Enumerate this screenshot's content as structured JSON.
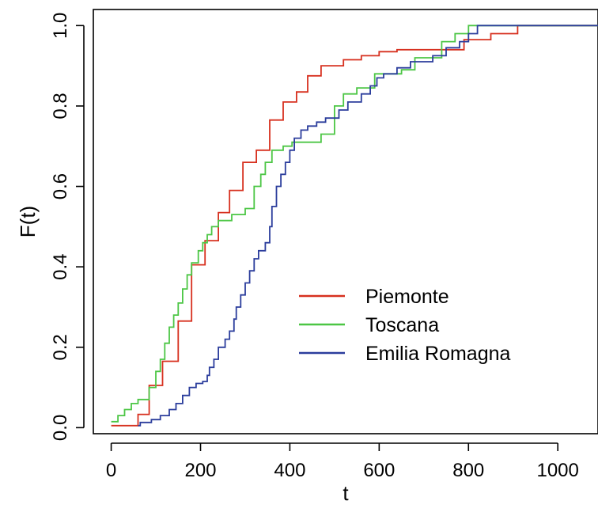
{
  "chart_data": {
    "type": "line",
    "title": "",
    "xlabel": "t",
    "ylabel": "F(t)",
    "xlim": [
      -40,
      1090
    ],
    "ylim": [
      -0.015,
      1.04
    ],
    "x_ticks": [
      0,
      200,
      400,
      600,
      800,
      1000
    ],
    "x_tick_labels": [
      "0",
      "200",
      "400",
      "600",
      "800",
      "1000"
    ],
    "y_ticks": [
      0.0,
      0.2,
      0.4,
      0.6,
      0.8,
      1.0
    ],
    "y_tick_labels": [
      "0.0",
      "0.2",
      "0.4",
      "0.6",
      "0.8",
      "1.0"
    ],
    "grid": false,
    "legend_position": "center-right",
    "series": [
      {
        "name": "Piemonte",
        "color": "#d7301f",
        "points": [
          [
            0,
            0.005
          ],
          [
            60,
            0.005
          ],
          [
            60,
            0.033
          ],
          [
            85,
            0.033
          ],
          [
            85,
            0.105
          ],
          [
            115,
            0.105
          ],
          [
            115,
            0.165
          ],
          [
            150,
            0.165
          ],
          [
            150,
            0.265
          ],
          [
            180,
            0.265
          ],
          [
            180,
            0.405
          ],
          [
            210,
            0.405
          ],
          [
            210,
            0.465
          ],
          [
            240,
            0.465
          ],
          [
            240,
            0.535
          ],
          [
            265,
            0.535
          ],
          [
            265,
            0.59
          ],
          [
            295,
            0.59
          ],
          [
            295,
            0.66
          ],
          [
            325,
            0.66
          ],
          [
            325,
            0.69
          ],
          [
            355,
            0.69
          ],
          [
            355,
            0.765
          ],
          [
            385,
            0.765
          ],
          [
            385,
            0.81
          ],
          [
            415,
            0.81
          ],
          [
            415,
            0.835
          ],
          [
            440,
            0.835
          ],
          [
            440,
            0.875
          ],
          [
            470,
            0.875
          ],
          [
            470,
            0.9
          ],
          [
            520,
            0.9
          ],
          [
            520,
            0.915
          ],
          [
            560,
            0.915
          ],
          [
            560,
            0.925
          ],
          [
            600,
            0.925
          ],
          [
            600,
            0.935
          ],
          [
            640,
            0.935
          ],
          [
            640,
            0.94
          ],
          [
            790,
            0.94
          ],
          [
            790,
            0.965
          ],
          [
            850,
            0.965
          ],
          [
            850,
            0.98
          ],
          [
            910,
            0.98
          ],
          [
            910,
            1.0
          ],
          [
            1090,
            1.0
          ]
        ]
      },
      {
        "name": "Toscana",
        "color": "#4cc645",
        "points": [
          [
            0,
            0.015
          ],
          [
            15,
            0.015
          ],
          [
            15,
            0.03
          ],
          [
            30,
            0.03
          ],
          [
            30,
            0.045
          ],
          [
            45,
            0.045
          ],
          [
            45,
            0.06
          ],
          [
            60,
            0.06
          ],
          [
            60,
            0.07
          ],
          [
            85,
            0.07
          ],
          [
            85,
            0.1
          ],
          [
            100,
            0.1
          ],
          [
            100,
            0.14
          ],
          [
            110,
            0.14
          ],
          [
            110,
            0.17
          ],
          [
            120,
            0.17
          ],
          [
            120,
            0.21
          ],
          [
            130,
            0.21
          ],
          [
            130,
            0.25
          ],
          [
            140,
            0.25
          ],
          [
            140,
            0.28
          ],
          [
            150,
            0.28
          ],
          [
            150,
            0.31
          ],
          [
            160,
            0.31
          ],
          [
            160,
            0.345
          ],
          [
            170,
            0.345
          ],
          [
            170,
            0.38
          ],
          [
            180,
            0.38
          ],
          [
            180,
            0.41
          ],
          [
            195,
            0.41
          ],
          [
            195,
            0.44
          ],
          [
            205,
            0.44
          ],
          [
            205,
            0.46
          ],
          [
            215,
            0.46
          ],
          [
            215,
            0.48
          ],
          [
            225,
            0.48
          ],
          [
            225,
            0.5
          ],
          [
            240,
            0.5
          ],
          [
            240,
            0.515
          ],
          [
            270,
            0.515
          ],
          [
            270,
            0.53
          ],
          [
            300,
            0.53
          ],
          [
            300,
            0.545
          ],
          [
            320,
            0.545
          ],
          [
            320,
            0.6
          ],
          [
            335,
            0.6
          ],
          [
            335,
            0.63
          ],
          [
            345,
            0.63
          ],
          [
            345,
            0.66
          ],
          [
            360,
            0.66
          ],
          [
            360,
            0.69
          ],
          [
            385,
            0.69
          ],
          [
            385,
            0.7
          ],
          [
            405,
            0.7
          ],
          [
            405,
            0.71
          ],
          [
            470,
            0.71
          ],
          [
            470,
            0.73
          ],
          [
            500,
            0.73
          ],
          [
            500,
            0.8
          ],
          [
            520,
            0.8
          ],
          [
            520,
            0.83
          ],
          [
            550,
            0.83
          ],
          [
            550,
            0.845
          ],
          [
            590,
            0.845
          ],
          [
            590,
            0.88
          ],
          [
            650,
            0.88
          ],
          [
            650,
            0.89
          ],
          [
            680,
            0.89
          ],
          [
            680,
            0.92
          ],
          [
            740,
            0.92
          ],
          [
            740,
            0.96
          ],
          [
            770,
            0.96
          ],
          [
            770,
            0.98
          ],
          [
            800,
            0.98
          ],
          [
            800,
            1.0
          ],
          [
            1090,
            1.0
          ]
        ]
      },
      {
        "name": "Emilia Romagna",
        "color": "#2b3d9c",
        "points": [
          [
            60,
            0.005
          ],
          [
            65,
            0.005
          ],
          [
            65,
            0.013
          ],
          [
            90,
            0.013
          ],
          [
            90,
            0.02
          ],
          [
            110,
            0.02
          ],
          [
            110,
            0.03
          ],
          [
            130,
            0.03
          ],
          [
            130,
            0.045
          ],
          [
            145,
            0.045
          ],
          [
            145,
            0.06
          ],
          [
            160,
            0.06
          ],
          [
            160,
            0.08
          ],
          [
            175,
            0.08
          ],
          [
            175,
            0.1
          ],
          [
            190,
            0.1
          ],
          [
            190,
            0.11
          ],
          [
            205,
            0.11
          ],
          [
            205,
            0.115
          ],
          [
            215,
            0.115
          ],
          [
            215,
            0.13
          ],
          [
            220,
            0.13
          ],
          [
            220,
            0.15
          ],
          [
            230,
            0.15
          ],
          [
            230,
            0.17
          ],
          [
            240,
            0.17
          ],
          [
            240,
            0.2
          ],
          [
            255,
            0.2
          ],
          [
            255,
            0.22
          ],
          [
            265,
            0.22
          ],
          [
            265,
            0.24
          ],
          [
            275,
            0.24
          ],
          [
            275,
            0.27
          ],
          [
            280,
            0.27
          ],
          [
            280,
            0.3
          ],
          [
            290,
            0.3
          ],
          [
            290,
            0.33
          ],
          [
            300,
            0.33
          ],
          [
            300,
            0.36
          ],
          [
            310,
            0.36
          ],
          [
            310,
            0.39
          ],
          [
            320,
            0.39
          ],
          [
            320,
            0.42
          ],
          [
            330,
            0.42
          ],
          [
            330,
            0.44
          ],
          [
            345,
            0.44
          ],
          [
            345,
            0.46
          ],
          [
            355,
            0.46
          ],
          [
            355,
            0.5
          ],
          [
            360,
            0.5
          ],
          [
            360,
            0.55
          ],
          [
            370,
            0.55
          ],
          [
            370,
            0.6
          ],
          [
            380,
            0.6
          ],
          [
            380,
            0.63
          ],
          [
            390,
            0.63
          ],
          [
            390,
            0.66
          ],
          [
            400,
            0.66
          ],
          [
            400,
            0.69
          ],
          [
            410,
            0.69
          ],
          [
            410,
            0.72
          ],
          [
            425,
            0.72
          ],
          [
            425,
            0.74
          ],
          [
            440,
            0.74
          ],
          [
            440,
            0.75
          ],
          [
            460,
            0.75
          ],
          [
            460,
            0.76
          ],
          [
            480,
            0.76
          ],
          [
            480,
            0.77
          ],
          [
            510,
            0.77
          ],
          [
            510,
            0.79
          ],
          [
            530,
            0.79
          ],
          [
            530,
            0.81
          ],
          [
            560,
            0.81
          ],
          [
            560,
            0.83
          ],
          [
            580,
            0.83
          ],
          [
            580,
            0.85
          ],
          [
            595,
            0.85
          ],
          [
            595,
            0.87
          ],
          [
            610,
            0.87
          ],
          [
            610,
            0.88
          ],
          [
            640,
            0.88
          ],
          [
            640,
            0.895
          ],
          [
            670,
            0.895
          ],
          [
            670,
            0.91
          ],
          [
            720,
            0.91
          ],
          [
            720,
            0.925
          ],
          [
            750,
            0.925
          ],
          [
            750,
            0.945
          ],
          [
            780,
            0.945
          ],
          [
            780,
            0.96
          ],
          [
            800,
            0.96
          ],
          [
            800,
            0.98
          ],
          [
            820,
            0.98
          ],
          [
            820,
            1.0
          ],
          [
            1090,
            1.0
          ]
        ]
      }
    ]
  }
}
